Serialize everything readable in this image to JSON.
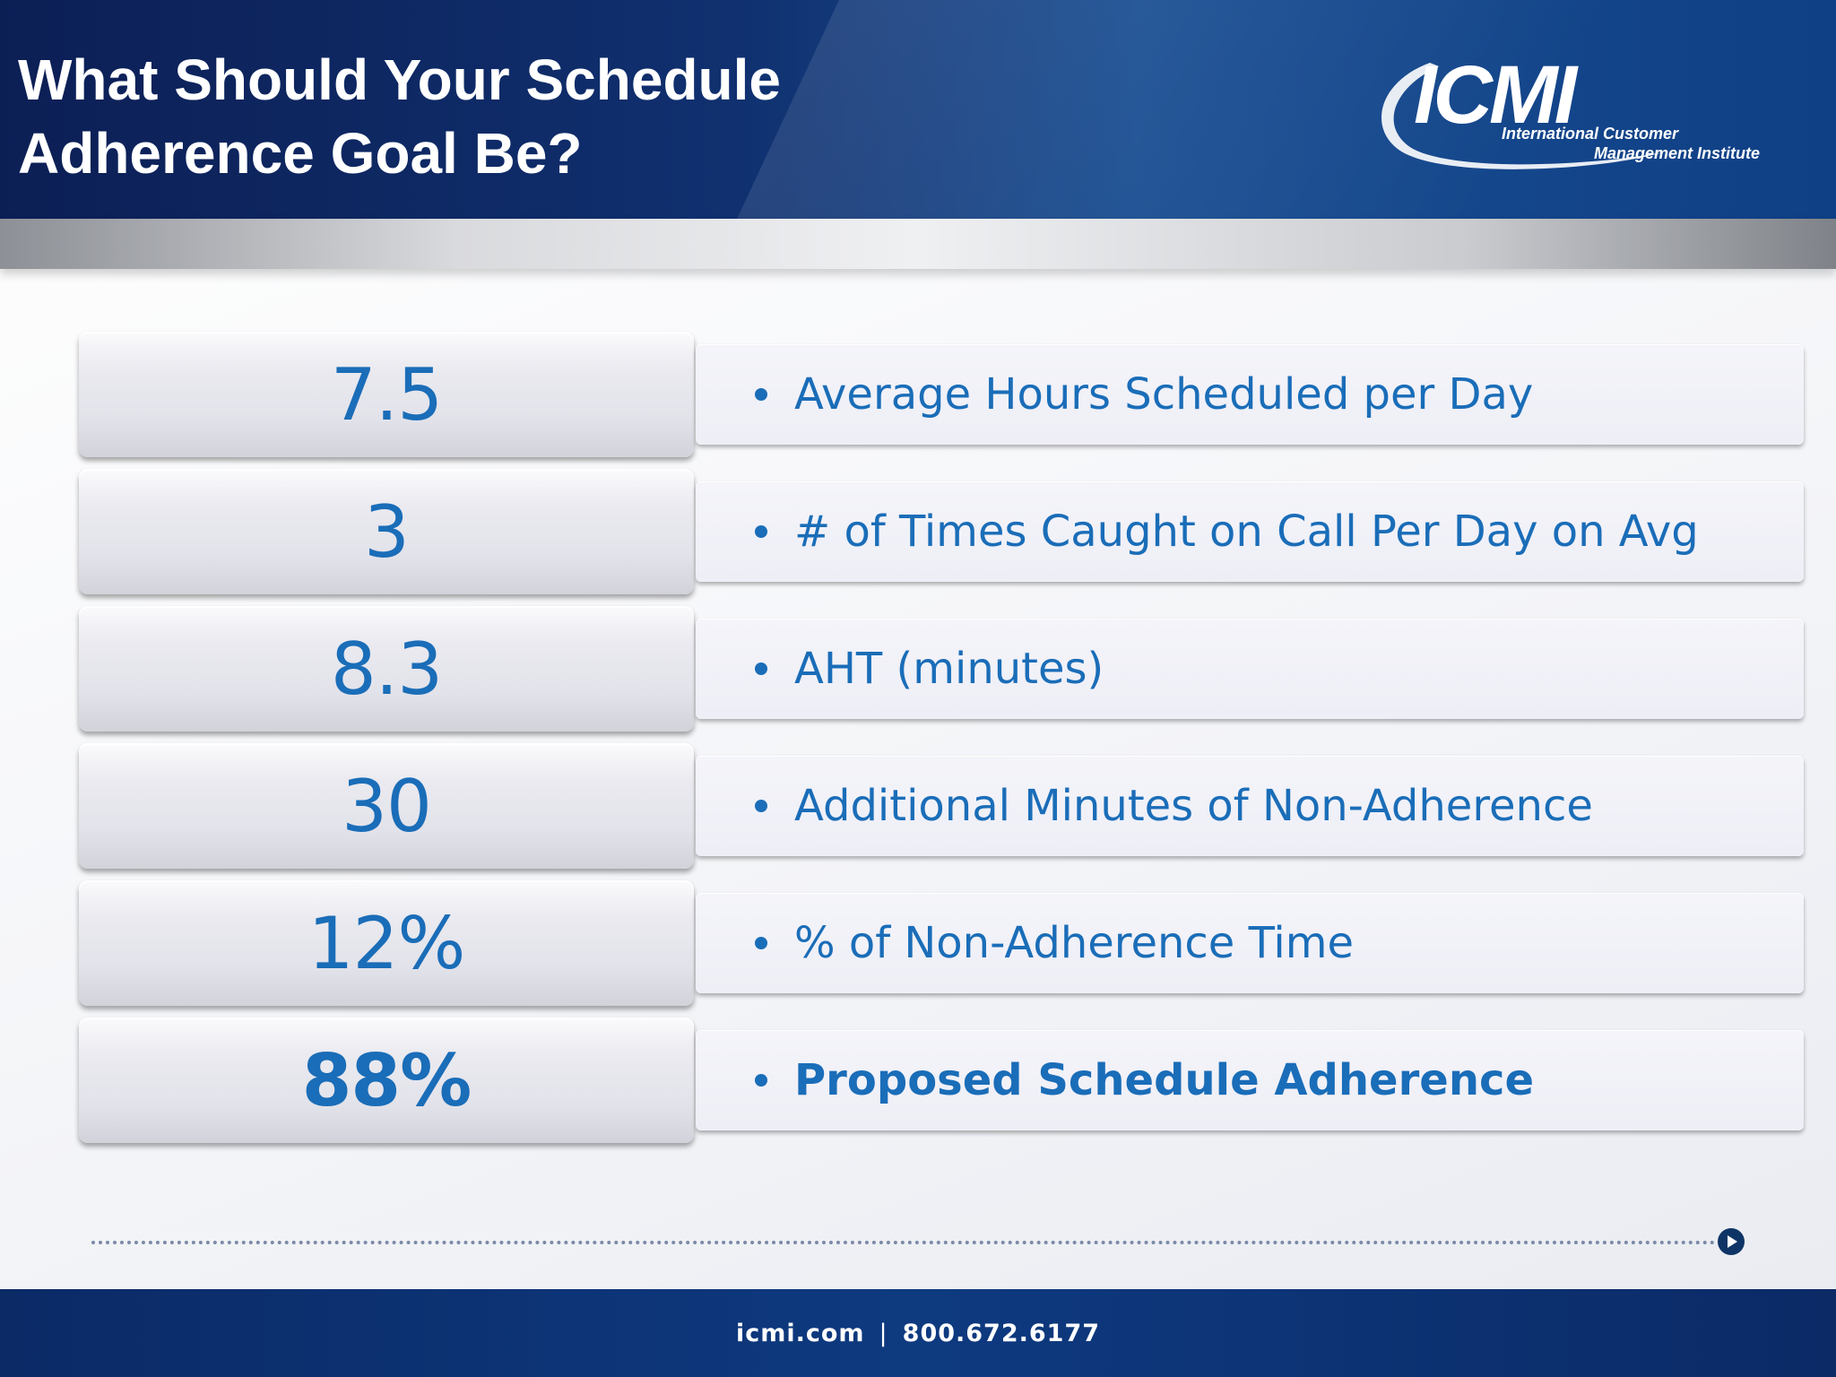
{
  "slide": {
    "title_line1": "What Should Your Schedule",
    "title_line2": "Adherence Goal Be?"
  },
  "logo": {
    "name": "ICMI",
    "subtitle_line1": "International Customer",
    "subtitle_line2": "Management Institute"
  },
  "rows": [
    {
      "value": "7.5",
      "label": "Average Hours Scheduled per Day",
      "emphasis": false
    },
    {
      "value": "3",
      "label": "# of Times Caught on Call Per Day on Avg",
      "emphasis": false
    },
    {
      "value": "8.3",
      "label": "AHT (minutes)",
      "emphasis": false
    },
    {
      "value": "30",
      "label": "Additional Minutes of Non-Adherence",
      "emphasis": false
    },
    {
      "value": "12%",
      "label": "% of Non-Adherence Time",
      "emphasis": false
    },
    {
      "value": "88%",
      "label": "Proposed Schedule Adherence",
      "emphasis": true
    }
  ],
  "footer": {
    "website": "icmi.com",
    "separator": "|",
    "phone": "800.672.6177"
  },
  "colors": {
    "accent": "#1a6db8",
    "header_dark": "#0c1f55",
    "footer": "#0e3a80"
  },
  "icons": {
    "bullet": "bullet-dot-icon",
    "next": "next-arrow-icon"
  }
}
